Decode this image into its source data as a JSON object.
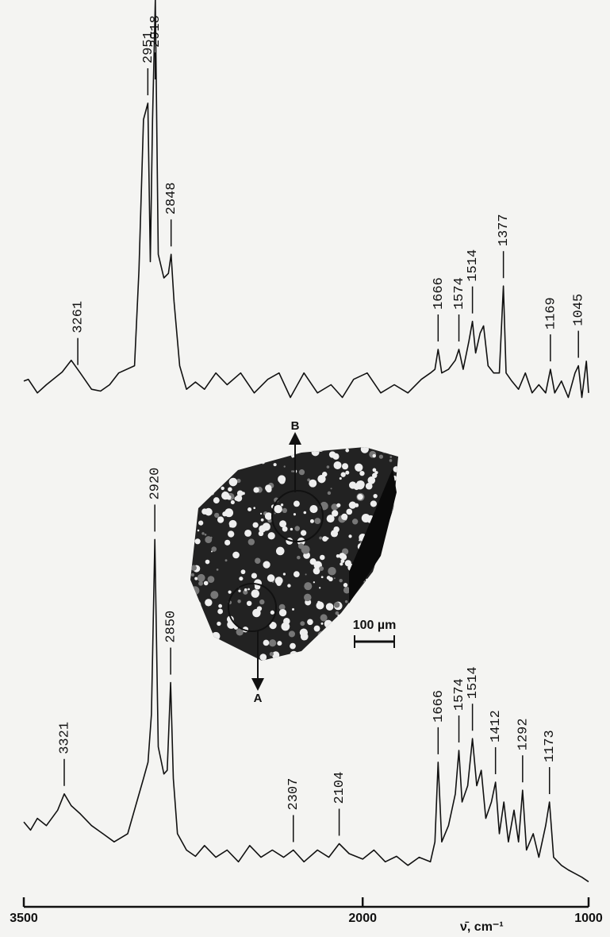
{
  "chart_data": {
    "type": "line",
    "xlabel": "ν̄, cm⁻¹",
    "xlim": [
      3500,
      1000
    ],
    "xticks": [
      3500,
      2000,
      1000
    ],
    "ylim": [
      0,
      100
    ],
    "color": "#111111",
    "series": [
      {
        "x": [
          3500,
          3480,
          3440,
          3400,
          3330,
          3290,
          3250,
          3200,
          3160,
          3120,
          3080,
          3010,
          2990,
          2970,
          2951,
          2940,
          2930,
          2918,
          2905,
          2880,
          2860,
          2848,
          2835,
          2810,
          2780,
          2740,
          2700,
          2650,
          2600,
          2540,
          2480,
          2420,
          2370,
          2320,
          2260,
          2200,
          2140,
          2090,
          2040,
          1980,
          1920,
          1860,
          1800,
          1740,
          1700,
          1680,
          1666,
          1650,
          1620,
          1590,
          1574,
          1555,
          1530,
          1514,
          1500,
          1480,
          1465,
          1445,
          1420,
          1395,
          1377,
          1365,
          1340,
          1310,
          1280,
          1250,
          1220,
          1190,
          1169,
          1150,
          1120,
          1090,
          1060,
          1045,
          1030,
          1010,
          1000
        ],
        "values": [
          57.9,
          58.1,
          56.6,
          57.5,
          58.9,
          60.2,
          58.8,
          57.0,
          56.8,
          57.5,
          58.8,
          59.6,
          70.2,
          86.8,
          88.6,
          71.1,
          86.8,
          100,
          71.9,
          69.3,
          69.8,
          71.9,
          66.7,
          59.6,
          57.0,
          57.8,
          57.0,
          58.8,
          57.5,
          58.8,
          56.6,
          58.1,
          58.8,
          56.1,
          58.8,
          56.6,
          57.5,
          56.1,
          58.1,
          58.8,
          56.6,
          57.5,
          56.6,
          58.1,
          58.8,
          59.2,
          61.4,
          58.8,
          59.2,
          60.2,
          61.4,
          59.2,
          62.3,
          64.5,
          61.0,
          63.2,
          64.0,
          59.6,
          58.8,
          58.8,
          68.4,
          58.8,
          57.9,
          57.0,
          58.8,
          56.6,
          57.5,
          56.6,
          59.2,
          56.6,
          57.9,
          56.1,
          58.8,
          59.6,
          56.1,
          60.1,
          56.6
        ],
        "peaks": [
          3261,
          2951,
          2918,
          2848,
          1666,
          1574,
          1514,
          1377,
          1169,
          1045
        ]
      },
      {
        "x": [
          3500,
          3470,
          3440,
          3400,
          3350,
          3321,
          3290,
          3250,
          3200,
          3150,
          3100,
          3040,
          3000,
          2970,
          2950,
          2935,
          2920,
          2905,
          2880,
          2865,
          2850,
          2838,
          2820,
          2780,
          2740,
          2700,
          2650,
          2600,
          2550,
          2500,
          2450,
          2400,
          2350,
          2307,
          2260,
          2200,
          2150,
          2104,
          2060,
          2000,
          1950,
          1900,
          1850,
          1800,
          1750,
          1700,
          1680,
          1666,
          1650,
          1620,
          1590,
          1574,
          1560,
          1535,
          1514,
          1495,
          1475,
          1455,
          1430,
          1412,
          1395,
          1375,
          1355,
          1330,
          1310,
          1292,
          1275,
          1245,
          1220,
          1190,
          1173,
          1155,
          1120,
          1090,
          1060,
          1030,
          1000
        ],
        "values": [
          9.2,
          8.3,
          9.6,
          8.8,
          10.5,
          12.3,
          11.0,
          10.1,
          8.8,
          7.9,
          7.0,
          7.9,
          11.4,
          14.0,
          15.8,
          21.1,
          40.4,
          17.5,
          14.5,
          14.9,
          24.6,
          14.0,
          7.9,
          6.1,
          5.4,
          6.6,
          5.3,
          6.1,
          4.8,
          6.6,
          5.3,
          6.1,
          5.3,
          6.1,
          4.8,
          6.1,
          5.3,
          6.8,
          5.7,
          5.1,
          6.1,
          4.8,
          5.4,
          4.4,
          5.3,
          4.8,
          7.0,
          15.8,
          7.0,
          8.8,
          12.3,
          17.1,
          11.4,
          13.2,
          18.4,
          13.2,
          14.9,
          9.6,
          11.4,
          13.6,
          7.9,
          11.4,
          7.0,
          10.5,
          7.0,
          12.7,
          6.1,
          7.9,
          5.3,
          8.8,
          11.4,
          5.3,
          4.4,
          3.9,
          3.5,
          3.1,
          2.6
        ],
        "peaks": [
          3321,
          2920,
          2850,
          2307,
          2104,
          1666,
          1574,
          1514,
          1412,
          1292,
          1173
        ]
      }
    ],
    "inset": {
      "top_label": "B",
      "bottom_label": "A",
      "scale_bar": "100 µm"
    }
  }
}
